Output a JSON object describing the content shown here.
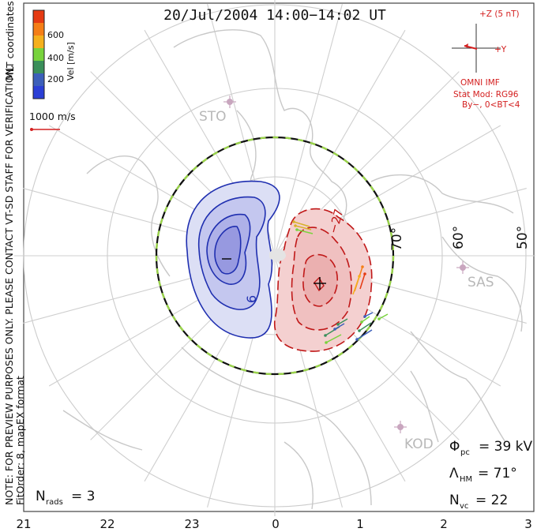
{
  "title": "20/Jul/2004 14:00−14:02 UT",
  "side_note": "NOTE: FOR PREVIEW PURPOSES ONLY. PLEASE CONTACT VT-SD STAFF FOR VERIFICATION.",
  "mlt_label": "MLT coordinates",
  "fit_label": "FitOrder: 8, mapEX format",
  "colorbar": {
    "label": "Vel [m/s]",
    "ticks": [
      "600",
      "400",
      "200"
    ],
    "colors": [
      "#e53a12",
      "#f57e16",
      "#f5b01c",
      "#78d33c",
      "#3a8f5a",
      "#3c5fba",
      "#2b3fd6"
    ]
  },
  "ref_vector": "1000 m/s",
  "imf": {
    "z_label": "+Z (5 nT)",
    "y_label": "+Y",
    "source": "OMNI IMF",
    "model_line1": "Stat Mod: RG96",
    "model_line2": "By−, 0<BT<4"
  },
  "stations": [
    "STO",
    "SAS",
    "KOD"
  ],
  "lat_labels": [
    "70°",
    "60°",
    "50°"
  ],
  "contour_labels": [
    "6",
    "−27"
  ],
  "stats": {
    "phi_symbol": "Φ",
    "phi_sub": "pc",
    "phi_value": "= 39 kV",
    "lambda_symbol": "Λ",
    "lambda_sub": "HM",
    "lambda_value": "= 71°",
    "n_rads_symbol": "N",
    "n_rads_sub": "rads",
    "n_rads_value": "= 3",
    "n_vc_symbol": "N",
    "n_vc_sub": "vc",
    "n_vc_value": "= 22"
  },
  "chart_data": {
    "type": "polar-convection-map",
    "mlt_ticks": [
      "21",
      "22",
      "23",
      "0",
      "1",
      "2",
      "3"
    ],
    "latitude_circles": [
      80,
      70,
      60,
      50
    ],
    "heppner_maynard_boundary_deg": 71,
    "cross_polar_cap_potential_kV": 39,
    "n_radars": 3,
    "n_vectors": 22,
    "potential_cells": [
      {
        "sign": "negative",
        "color": "#1f2fb0",
        "fill": "#c9ccf2"
      },
      {
        "sign": "positive",
        "color": "#c01818",
        "fill": "#f6d2d2"
      }
    ]
  }
}
